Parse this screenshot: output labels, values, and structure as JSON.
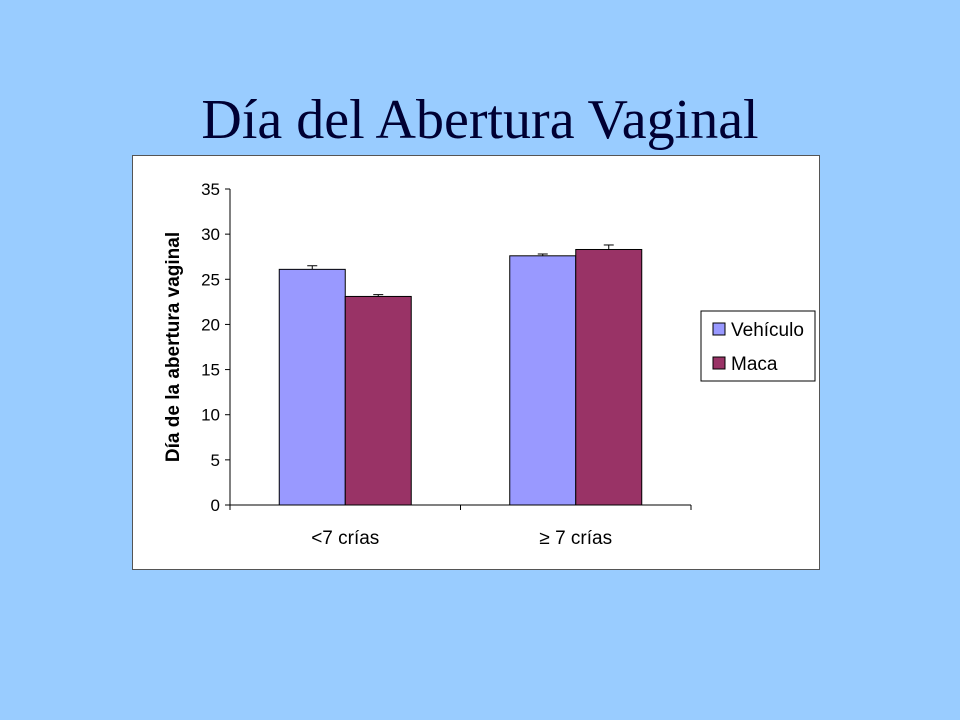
{
  "slide": {
    "title": "Día del Abertura Vaginal",
    "background": "#99ccff"
  },
  "chart_data": {
    "type": "bar",
    "title": "",
    "xlabel": "",
    "ylabel": "Día de la abertura vaginal",
    "ylim": [
      0,
      35
    ],
    "yticks": [
      0,
      5,
      10,
      15,
      20,
      25,
      30,
      35
    ],
    "categories": [
      "<7 crías",
      "≥ 7 crías"
    ],
    "grid": false,
    "legend_position": "right",
    "series": [
      {
        "name": "Vehículo",
        "color": "#9999ff",
        "values": [
          26.1,
          27.6
        ],
        "errors": [
          0.4,
          0.2
        ]
      },
      {
        "name": "Maca",
        "color": "#993366",
        "values": [
          23.1,
          28.3
        ],
        "errors": [
          0.2,
          0.5
        ]
      }
    ]
  }
}
